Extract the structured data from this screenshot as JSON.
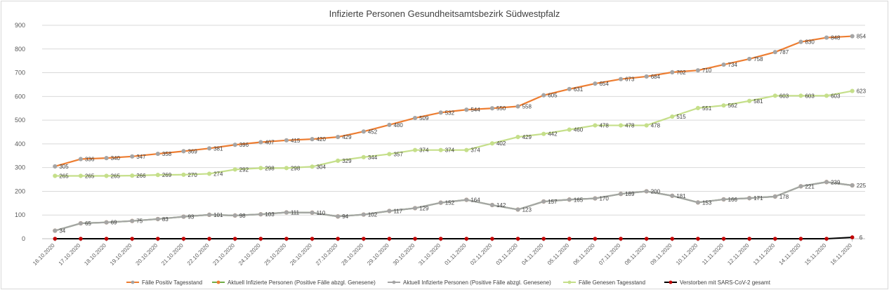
{
  "chart_data": {
    "type": "line",
    "title": "Infizierte Personen Gesundheitsamtsbezirk Südwestpfalz",
    "xlabel": "",
    "ylabel": "",
    "ylim": [
      0,
      900
    ],
    "yticks": [
      0,
      100,
      200,
      300,
      400,
      500,
      600,
      700,
      800,
      900
    ],
    "grid": true,
    "legend_position": "bottom",
    "categories": [
      "16.10.2020",
      "17.10.2020",
      "18.10.2020",
      "19.10.2020",
      "20.10.2020",
      "21.10.2020",
      "22.10.2020",
      "23.10.2020",
      "24.10.2020",
      "25.10.2020",
      "26.10.2020",
      "27.10.2020",
      "28.10.2020",
      "29.10.2020",
      "30.10.2020",
      "31.10.2020",
      "01.11.2020",
      "02.11.2020",
      "03.11.2020",
      "04.11.2020",
      "05.11.2020",
      "06.11.2020",
      "07.11.2020",
      "08.11.2020",
      "09.11.2020",
      "10.11.2020",
      "11.11.2020",
      "12.11.2020",
      "13.11.2020",
      "14.11.2020",
      "15.11.2020",
      "16.11.2020"
    ],
    "series": [
      {
        "name": "Fälle Positiv Tagesstand",
        "color": "#ed7d31",
        "marker_color": "#a5a5a5",
        "values": [
          305,
          336,
          340,
          347,
          358,
          369,
          381,
          396,
          407,
          415,
          420,
          429,
          452,
          480,
          509,
          532,
          544,
          550,
          558,
          605,
          631,
          654,
          673,
          684,
          702,
          710,
          734,
          758,
          787,
          830,
          848,
          854
        ],
        "show_labels": true
      },
      {
        "name": "Aktuell Infizierte Personen (Positive Fälle abzgl. Genesene)",
        "color": "#70ad47",
        "marker_color": "#ed7d31",
        "values": [
          34,
          65,
          69,
          75,
          83,
          93,
          101,
          98,
          103,
          111,
          110,
          94,
          102,
          117,
          129,
          152,
          164,
          142,
          123,
          157,
          165,
          170,
          189,
          200,
          181,
          153,
          166,
          171,
          178,
          221,
          239,
          225
        ],
        "show_labels": false
      },
      {
        "name": "Aktuell Infizierte Personen (Positive Fälle abzgl. Genesene)",
        "color": "#a5a5a5",
        "marker_color": "#a5a5a5",
        "values": [
          34,
          65,
          69,
          75,
          83,
          93,
          101,
          98,
          103,
          111,
          110,
          94,
          102,
          117,
          129,
          152,
          164,
          142,
          123,
          157,
          165,
          170,
          189,
          200,
          181,
          153,
          166,
          171,
          178,
          221,
          239,
          225
        ],
        "show_labels": true
      },
      {
        "name": "Fälle Genesen Tagesstand",
        "color": "#c5df8a",
        "marker_color": "#c5df8a",
        "values": [
          265,
          265,
          265,
          266,
          269,
          270,
          274,
          292,
          298,
          298,
          304,
          329,
          344,
          357,
          374,
          374,
          374,
          402,
          429,
          442,
          460,
          478,
          478,
          478,
          515,
          551,
          562,
          581,
          603,
          603,
          603,
          623
        ],
        "show_labels": true
      },
      {
        "name": "Verstorben mit SARS-CoV-2 gesamt",
        "color": "#000000",
        "marker_color": "#c00000",
        "values": [
          0,
          0,
          0,
          0,
          0,
          0,
          0,
          0,
          0,
          0,
          0,
          0,
          0,
          0,
          0,
          0,
          0,
          0,
          0,
          0,
          0,
          0,
          0,
          0,
          0,
          0,
          0,
          0,
          0,
          0,
          0,
          6
        ],
        "last_label": "6"
      }
    ]
  }
}
